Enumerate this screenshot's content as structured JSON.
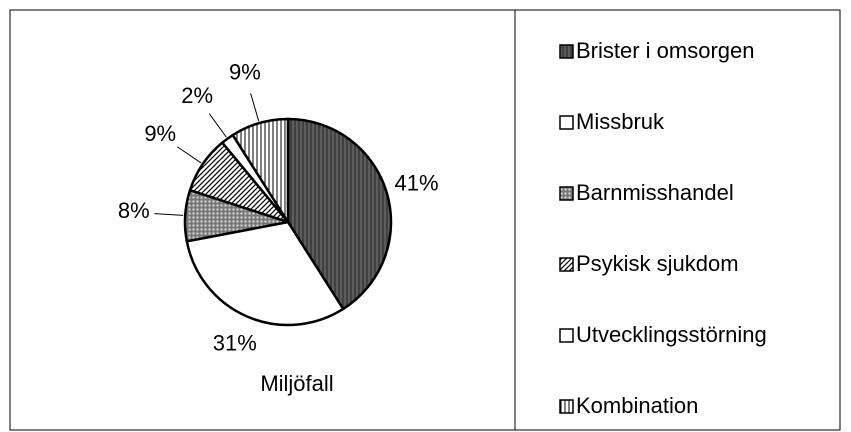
{
  "chart_data": {
    "type": "pie",
    "title": "Miljöfall",
    "categories": [
      "Brister i omsorgen",
      "Missbruk",
      "Barnmisshandel",
      "Psykisk sjukdom",
      "Utvecklingsstörning",
      "Kombination"
    ],
    "values": [
      41,
      31,
      8,
      9,
      2,
      9
    ],
    "value_labels": [
      "41%",
      "31%",
      "8%",
      "9%",
      "2%",
      "9%"
    ],
    "colors": [
      "#404040",
      "#ffffff",
      "#ffffff",
      "#ffffff",
      "#ffffff",
      "#ffffff"
    ],
    "patterns": [
      "dense-vertical",
      "none",
      "grid",
      "diagonal",
      "none",
      "vertical"
    ],
    "legend": "right"
  }
}
